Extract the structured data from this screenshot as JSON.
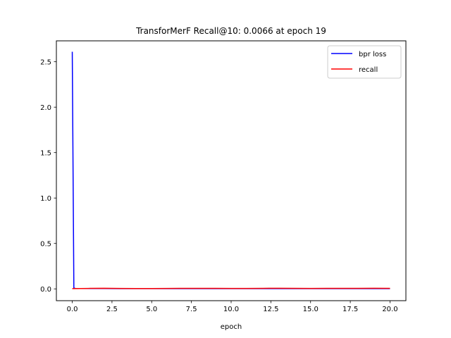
{
  "chart_data": {
    "type": "line",
    "title": "TransforMerF Recall@10: 0.0066 at epoch 19",
    "xlabel": "epoch",
    "ylabel": "",
    "xlim": [
      -1.0,
      21.0
    ],
    "ylim": [
      -0.13,
      2.73
    ],
    "xticks": [
      "0.0",
      "2.5",
      "5.0",
      "7.5",
      "10.0",
      "12.5",
      "15.0",
      "17.5",
      "20.0"
    ],
    "xtick_values": [
      0,
      2.5,
      5,
      7.5,
      10,
      12.5,
      15,
      17.5,
      20
    ],
    "yticks": [
      "0.0",
      "0.5",
      "1.0",
      "1.5",
      "2.0",
      "2.5"
    ],
    "ytick_values": [
      0,
      0.5,
      1,
      1.5,
      2,
      2.5
    ],
    "grid": false,
    "legend_position": "top-right",
    "series": [
      {
        "name": "bpr loss",
        "color": "#0000ff",
        "x": [
          0,
          0.1,
          0.2,
          1,
          2,
          3,
          4,
          5,
          6,
          7,
          8,
          9,
          10,
          11,
          12,
          13,
          14,
          15,
          16,
          17,
          18,
          19,
          20
        ],
        "values": [
          2.61,
          0.01,
          0.004,
          0.004,
          0.004,
          0.003,
          0.003,
          0.003,
          0.003,
          0.003,
          0.003,
          0.003,
          0.003,
          0.003,
          0.003,
          0.003,
          0.003,
          0.003,
          0.003,
          0.003,
          0.003,
          0.003,
          0.003
        ]
      },
      {
        "name": "recall",
        "color": "#ff0000",
        "x": [
          0,
          1,
          2,
          3,
          4,
          5,
          6,
          7,
          8,
          9,
          10,
          11,
          12,
          13,
          14,
          15,
          16,
          17,
          18,
          19,
          20
        ],
        "values": [
          0.003,
          0.005,
          0.007,
          0.005,
          0.004,
          0.004,
          0.005,
          0.006,
          0.006,
          0.006,
          0.005,
          0.005,
          0.006,
          0.007,
          0.006,
          0.005,
          0.006,
          0.006,
          0.006,
          0.0066,
          0.006
        ]
      }
    ]
  }
}
